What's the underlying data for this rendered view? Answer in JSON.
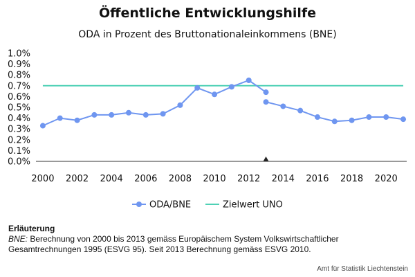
{
  "chart_data": {
    "type": "line",
    "title": "Öffentliche Entwicklungshilfe",
    "subtitle": "ODA in Prozent des Bruttonationaleinkommens (BNE)",
    "x": [
      2000,
      2001,
      2002,
      2003,
      2004,
      2005,
      2006,
      2007,
      2008,
      2009,
      2010,
      2011,
      2012,
      2013,
      2013,
      2014,
      2015,
      2016,
      2017,
      2018,
      2019,
      2020,
      2021
    ],
    "series": [
      {
        "name": "ODA/BNE",
        "color": "#6f96f0",
        "segments": [
          {
            "x": [
              2000,
              2001,
              2002,
              2003,
              2004,
              2005,
              2006,
              2007,
              2008,
              2009,
              2010,
              2011,
              2012,
              2013
            ],
            "values": [
              0.33,
              0.4,
              0.38,
              0.43,
              0.43,
              0.45,
              0.43,
              0.44,
              0.52,
              0.68,
              0.62,
              0.69,
              0.75,
              0.64
            ]
          },
          {
            "x": [
              2013,
              2014,
              2015,
              2016,
              2017,
              2018,
              2019,
              2020,
              2021
            ],
            "values": [
              0.55,
              0.51,
              0.47,
              0.41,
              0.37,
              0.38,
              0.41,
              0.41,
              0.39
            ]
          }
        ]
      },
      {
        "name": "Zielwert UNO",
        "color": "#4fd1b5",
        "constant": 0.7
      }
    ],
    "yticks": [
      "0.0%",
      "0.1%",
      "0.2%",
      "0.3%",
      "0.4%",
      "0.5%",
      "0.6%",
      "0.7%",
      "0.8%",
      "0.9%",
      "1.0%"
    ],
    "xticks": [
      "2000",
      "2002",
      "2004",
      "2006",
      "2008",
      "2010",
      "2012",
      "2014",
      "2016",
      "2018",
      "2020"
    ],
    "ylim": [
      0,
      1.0
    ],
    "xlim": [
      1999.6,
      2021.2
    ],
    "marker_year": 2013,
    "legend_position": "bottom-center"
  },
  "note": {
    "heading": "Erläuterung",
    "term": "BNE:",
    "text": " Berechnung von 2000 bis 2013 gemäss Europäischem System Volkswirtschaftlicher Gesamtrechnungen 1995 (ESVG 95). Seit 2013 Berechnung gemäss ESVG 2010."
  },
  "source": "Amt für Statistik Liechtenstein"
}
